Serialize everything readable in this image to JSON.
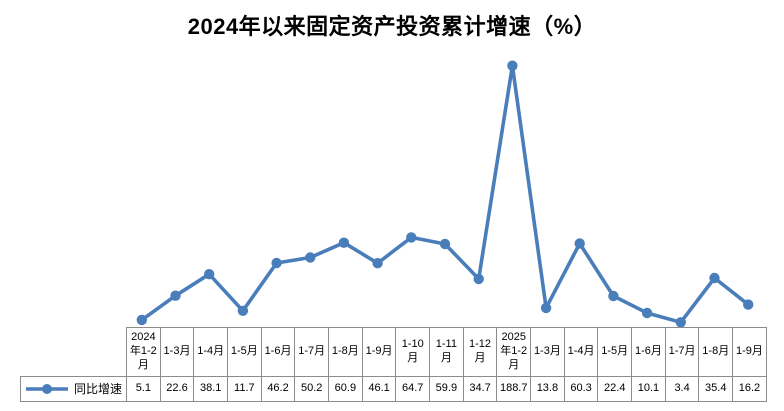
{
  "chart": {
    "title": "2024年以来固定资产投资累计增速（%）",
    "series_name": "同比增速"
  },
  "chart_data": {
    "type": "line",
    "title": "2024年以来固定资产投资累计增速（%）",
    "categories": [
      "2024年1-2月",
      "1-3月",
      "1-4月",
      "1-5月",
      "1-6月",
      "1-7月",
      "1-8月",
      "1-9月",
      "1-10月",
      "1-11月",
      "1-12月",
      "2025年1-2月",
      "1-3月",
      "1-4月",
      "1-5月",
      "1-6月",
      "1-7月",
      "1-8月",
      "1-9月"
    ],
    "series": [
      {
        "name": "同比增速",
        "values": [
          5.1,
          22.6,
          38.1,
          11.7,
          46.2,
          50.2,
          60.9,
          46.1,
          64.7,
          59.9,
          34.7,
          188.7,
          13.8,
          60.3,
          22.4,
          10.1,
          3.4,
          35.4,
          16.2
        ]
      }
    ],
    "xlabel": "",
    "ylabel": "",
    "ylim": [
      0,
      200
    ],
    "grid": false,
    "y_axis_shown": false,
    "legend_position": "bottom-left-table-key",
    "marker": "circle",
    "line_color": "#4A7EBB",
    "table_border_color": "#8c8c8c",
    "data_table_shown": true
  }
}
